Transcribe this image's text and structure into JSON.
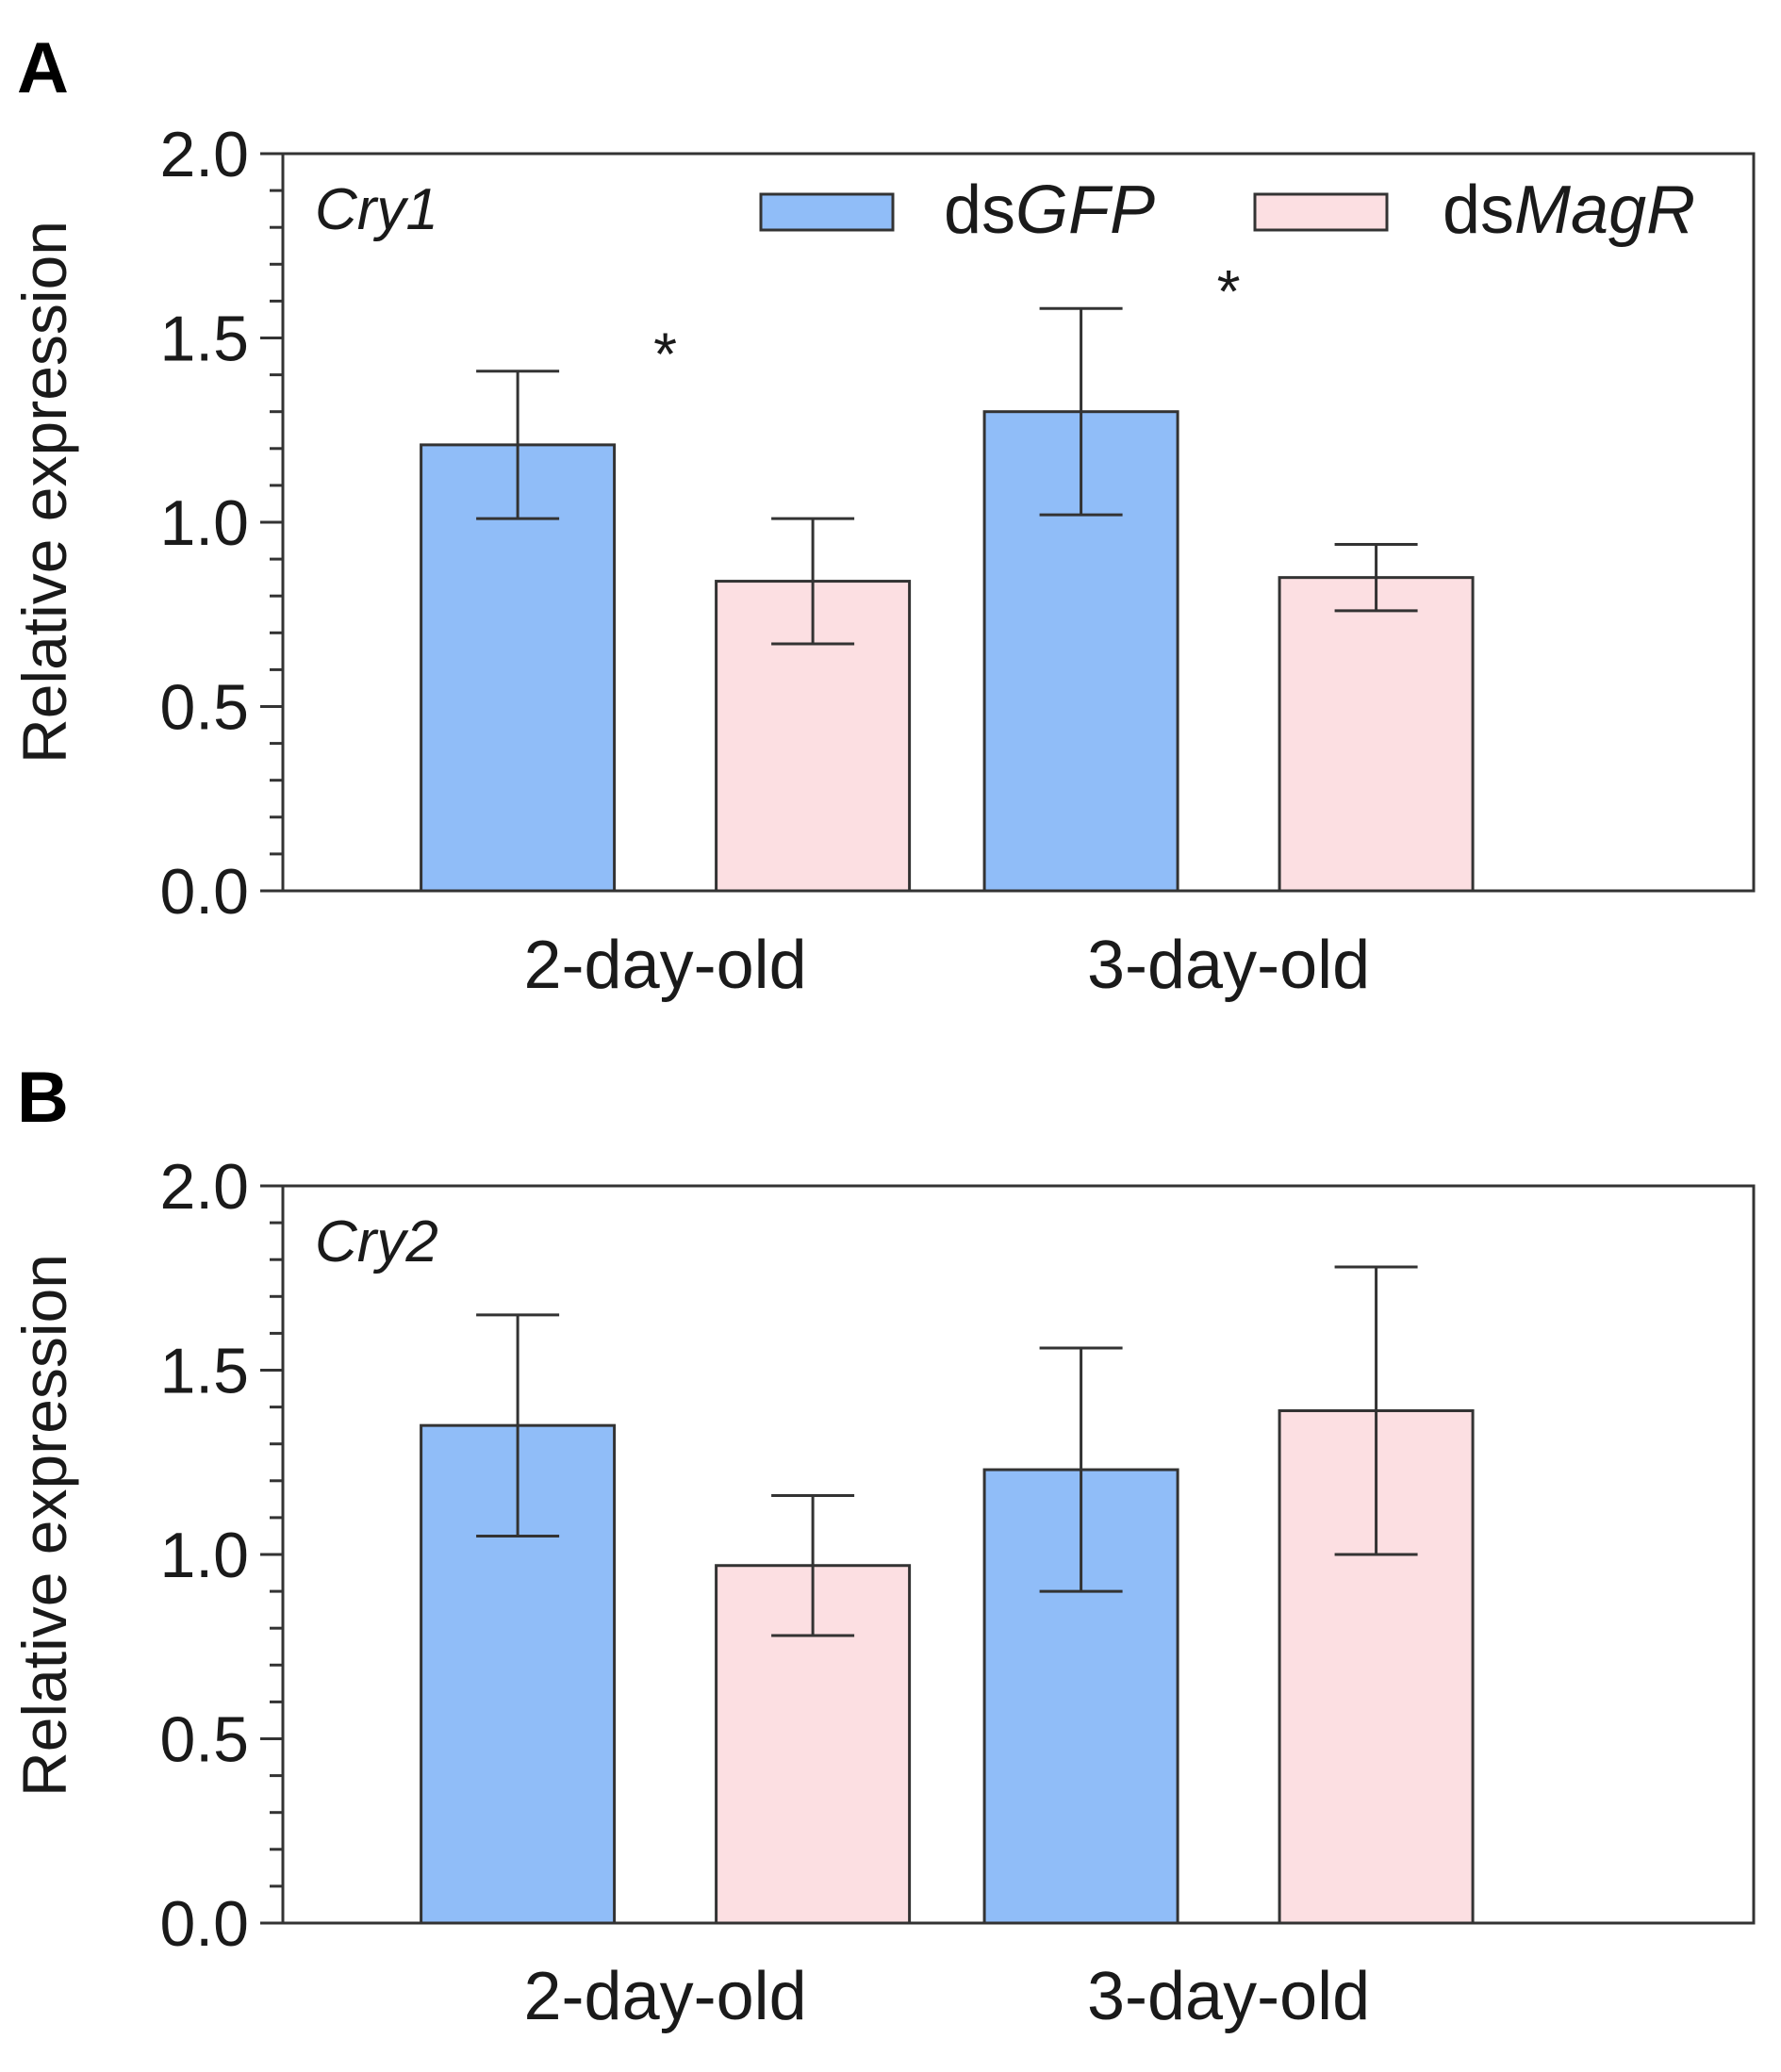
{
  "chart_data": [
    {
      "type": "bar",
      "panel": "A",
      "gene": "Cry1",
      "categories": [
        "2-day-old",
        "3-day-old"
      ],
      "series": [
        {
          "name": "dsGFP",
          "prefix": "ds",
          "italic": "GFP",
          "color": "#90bdf8",
          "values": [
            1.21,
            1.3
          ],
          "errors": [
            0.2,
            0.28
          ]
        },
        {
          "name": "dsMagR",
          "prefix": "ds",
          "italic": "MagR",
          "color": "#fcdfe2",
          "values": [
            0.84,
            0.85
          ],
          "errors": [
            0.17,
            0.09
          ]
        }
      ],
      "significance": [
        "*",
        "*"
      ],
      "ylabel": "Relative expression",
      "ylim": [
        0,
        2.0
      ],
      "yticks": [
        "0.0",
        "0.5",
        "1.0",
        "1.5",
        "2.0"
      ],
      "legend": "top-right"
    },
    {
      "type": "bar",
      "panel": "B",
      "gene": "Cry2",
      "categories": [
        "2-day-old",
        "3-day-old"
      ],
      "series": [
        {
          "name": "dsGFP",
          "color": "#90bdf8",
          "values": [
            1.35,
            1.23
          ],
          "errors": [
            0.3,
            0.33
          ]
        },
        {
          "name": "dsMagR",
          "color": "#fcdfe2",
          "values": [
            0.97,
            1.39
          ],
          "errors": [
            0.19,
            0.39
          ]
        }
      ],
      "significance": [
        "",
        ""
      ],
      "ylabel": "Relative expression",
      "ylim": [
        0,
        2.0
      ],
      "yticks": [
        "0.0",
        "0.5",
        "1.0",
        "1.5",
        "2.0"
      ]
    }
  ]
}
